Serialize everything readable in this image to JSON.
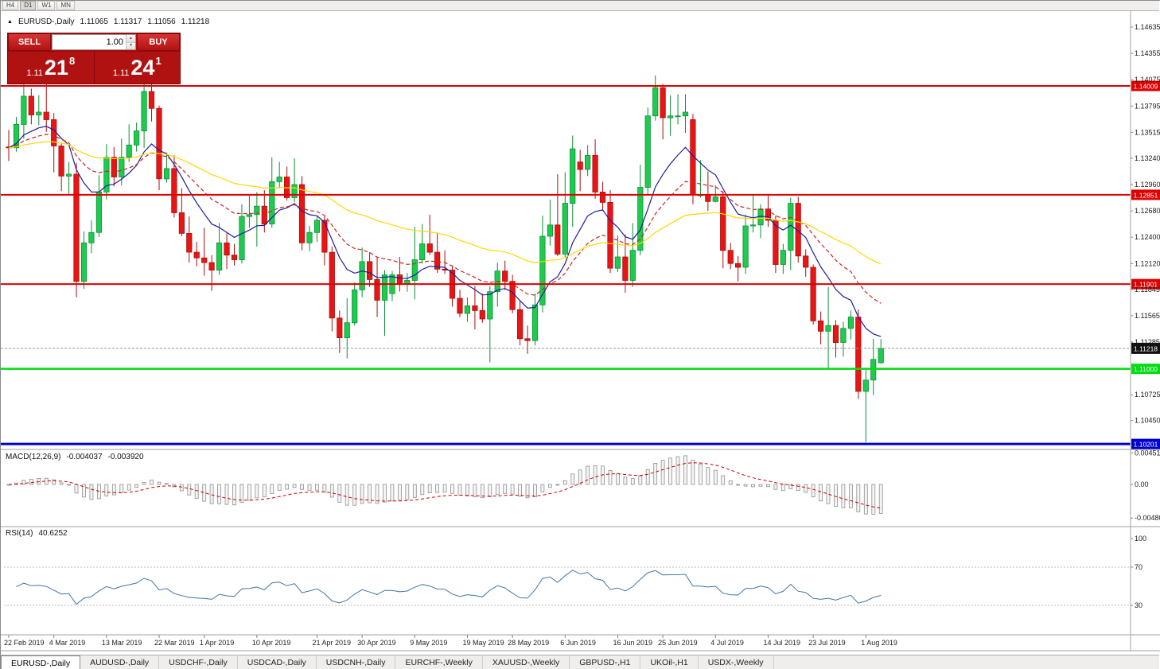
{
  "window": {
    "timeframes": [
      "H4",
      "D1",
      "W1",
      "MN"
    ],
    "active_timeframe": "D1"
  },
  "symbol_line": {
    "marker": "▲",
    "symbol": "EURUSD-,Daily",
    "open": "1.11065",
    "high": "1.11317",
    "low": "1.11056",
    "close": "1.11218"
  },
  "trade_panel": {
    "sell_label": "SELL",
    "buy_label": "BUY",
    "volume": "1.00",
    "sell_price": {
      "prefix": "1.11",
      "big": "21",
      "sup": "8"
    },
    "buy_price": {
      "prefix": "1.11",
      "big": "24",
      "sup": "1"
    }
  },
  "price_axis": {
    "labels": [
      "1.14635",
      "1.14355",
      "1.14075",
      "1.13795",
      "1.13515",
      "1.13240",
      "1.12960",
      "1.12680",
      "1.12400",
      "1.12120",
      "1.11845",
      "1.11565",
      "1.11285",
      "1.10725",
      "1.10450"
    ]
  },
  "levels": [
    {
      "label": "1.14009",
      "price": 1.14009,
      "color": "#dd0000",
      "text": "#ffffff",
      "width": 2
    },
    {
      "label": "1.12851",
      "price": 1.12851,
      "color": "#dd0000",
      "text": "#ffffff",
      "width": 2
    },
    {
      "label": "1.11901",
      "price": 1.11901,
      "color": "#dd0000",
      "text": "#ffffff",
      "width": 2
    },
    {
      "label": "1.11000",
      "price": 1.11,
      "color": "#00dd11",
      "text": "#ffffff",
      "width": 2.5
    },
    {
      "label": "1.10201",
      "price": 1.10201,
      "color": "#0000cc",
      "text": "#ffffff",
      "width": 3
    }
  ],
  "current_price": {
    "label": "1.11218",
    "price": 1.11218,
    "box_color": "#111111",
    "text_color": "#ffffff"
  },
  "dates": [
    {
      "label": "22 Feb 2019",
      "i": 0
    },
    {
      "label": "4 Mar 2019",
      "i": 6
    },
    {
      "label": "13 Mar 2019",
      "i": 13
    },
    {
      "label": "22 Mar 2019",
      "i": 20
    },
    {
      "label": "1 Apr 2019",
      "i": 26
    },
    {
      "label": "10 Apr 2019",
      "i": 33
    },
    {
      "label": "21 Apr 2019",
      "i": 41
    },
    {
      "label": "30 Apr 2019",
      "i": 47
    },
    {
      "label": "9 May 2019",
      "i": 54
    },
    {
      "label": "19 May 2019",
      "i": 61
    },
    {
      "label": "28 May 2019",
      "i": 67
    },
    {
      "label": "6 Jun 2019",
      "i": 74
    },
    {
      "label": "16 Jun 2019",
      "i": 81
    },
    {
      "label": "25 Jun 2019",
      "i": 87
    },
    {
      "label": "4 Jul 2019",
      "i": 94
    },
    {
      "label": "14 Jul 2019",
      "i": 101
    },
    {
      "label": "23 Jul 2019",
      "i": 107
    },
    {
      "label": "1 Aug 2019",
      "i": 114
    }
  ],
  "indicators": {
    "macd": {
      "name": "MACD(12,26,9)",
      "value_main": "-0.004037",
      "value_signal": "-0.003920",
      "axis": [
        "0.004517",
        "0.00",
        "-0.00480"
      ],
      "fast": 12,
      "slow": 26,
      "signal": 9,
      "bar_fill": "#f4f4f4",
      "bar_stroke": "#8f8f8f",
      "signal_color": "#cc0000"
    },
    "rsi": {
      "name": "RSI(14)",
      "value": "40.6252",
      "axis": [
        "100",
        "70",
        "30"
      ],
      "levels": [
        70,
        30
      ],
      "period": 14,
      "line_color": "#3f76a8"
    }
  },
  "moving_averages": [
    {
      "period": 10,
      "type": "ema",
      "color": "#1c1ca0",
      "dash": ""
    },
    {
      "period": 20,
      "type": "ema",
      "color": "#cc2222",
      "dash": "5,3"
    },
    {
      "period": 50,
      "type": "ema",
      "color": "#ffd800",
      "dash": ""
    }
  ],
  "colors": {
    "up": "#1ecb4f",
    "up_border": "#0a8f33",
    "down": "#e91515",
    "down_border": "#a80d0d",
    "axis_text": "#1a1a1a",
    "separator": "#a0a0a0"
  },
  "tabs": [
    {
      "label": "EURUSD-,Daily",
      "active": true
    },
    {
      "label": "AUDUSD-,Daily",
      "active": false
    },
    {
      "label": "USDCHF-,Daily",
      "active": false
    },
    {
      "label": "USDCAD-,Daily",
      "active": false
    },
    {
      "label": "USDCNH-,Daily",
      "active": false
    },
    {
      "label": "EURCHF-,Weekly",
      "active": false
    },
    {
      "label": "XAUUSD-,Weekly",
      "active": false
    },
    {
      "label": "GBPUSD-,H1",
      "active": false
    },
    {
      "label": "UKOil-,H1",
      "active": false
    },
    {
      "label": "USDX-,Weekly",
      "active": false
    }
  ],
  "chart_data": {
    "type": "candlestick",
    "symbol": "EURUSD-,Daily",
    "note": "OHLC per daily bar, 22 Feb 2019 - current",
    "candles": [
      [
        1.1336,
        1.1354,
        1.1321,
        1.1335
      ],
      [
        1.1335,
        1.1368,
        1.1331,
        1.136
      ],
      [
        1.136,
        1.1403,
        1.1345,
        1.139
      ],
      [
        1.139,
        1.1398,
        1.136,
        1.137
      ],
      [
        1.137,
        1.1391,
        1.1359,
        1.1373
      ],
      [
        1.1373,
        1.1408,
        1.1352,
        1.1365
      ],
      [
        1.1365,
        1.1372,
        1.1309,
        1.1337
      ],
      [
        1.1337,
        1.134,
        1.1289,
        1.1305
      ],
      [
        1.1305,
        1.132,
        1.1285,
        1.1307
      ],
      [
        1.1307,
        1.1319,
        1.1176,
        1.1193
      ],
      [
        1.1193,
        1.1246,
        1.1185,
        1.1234
      ],
      [
        1.1234,
        1.1258,
        1.1223,
        1.1245
      ],
      [
        1.1245,
        1.1306,
        1.124,
        1.1288
      ],
      [
        1.1288,
        1.1339,
        1.128,
        1.1325
      ],
      [
        1.1325,
        1.1336,
        1.1294,
        1.1304
      ],
      [
        1.1304,
        1.1345,
        1.1295,
        1.1325
      ],
      [
        1.1325,
        1.136,
        1.132,
        1.1338
      ],
      [
        1.1338,
        1.1362,
        1.1331,
        1.1353
      ],
      [
        1.1353,
        1.141,
        1.1335,
        1.1395
      ],
      [
        1.1395,
        1.1406,
        1.1363,
        1.1377
      ],
      [
        1.1377,
        1.138,
        1.129,
        1.1302
      ],
      [
        1.1302,
        1.133,
        1.1298,
        1.1313
      ],
      [
        1.1313,
        1.1327,
        1.1261,
        1.1266
      ],
      [
        1.1266,
        1.1292,
        1.1241,
        1.1244
      ],
      [
        1.1244,
        1.1262,
        1.1213,
        1.1224
      ],
      [
        1.1224,
        1.1235,
        1.1209,
        1.1218
      ],
      [
        1.1218,
        1.125,
        1.1199,
        1.1213
      ],
      [
        1.1213,
        1.1221,
        1.1183,
        1.1205
      ],
      [
        1.1205,
        1.1255,
        1.12,
        1.1234
      ],
      [
        1.1234,
        1.1244,
        1.1206,
        1.1221
      ],
      [
        1.1221,
        1.1233,
        1.121,
        1.1216
      ],
      [
        1.1216,
        1.1275,
        1.1212,
        1.1262
      ],
      [
        1.1262,
        1.1285,
        1.125,
        1.1264
      ],
      [
        1.1264,
        1.1288,
        1.123,
        1.1273
      ],
      [
        1.1273,
        1.129,
        1.1245,
        1.1254
      ],
      [
        1.1254,
        1.1325,
        1.125,
        1.1299
      ],
      [
        1.1299,
        1.132,
        1.1292,
        1.1304
      ],
      [
        1.1304,
        1.1315,
        1.1279,
        1.1282
      ],
      [
        1.1282,
        1.1324,
        1.1277,
        1.1296
      ],
      [
        1.1296,
        1.1305,
        1.1226,
        1.1234
      ],
      [
        1.1234,
        1.1252,
        1.1225,
        1.1245
      ],
      [
        1.1245,
        1.1262,
        1.1235,
        1.1258
      ],
      [
        1.1258,
        1.1262,
        1.121,
        1.1224
      ],
      [
        1.1224,
        1.123,
        1.114,
        1.1154
      ],
      [
        1.1154,
        1.1162,
        1.1117,
        1.1133
      ],
      [
        1.1133,
        1.1175,
        1.1111,
        1.1149
      ],
      [
        1.1149,
        1.1192,
        1.1146,
        1.1184
      ],
      [
        1.1184,
        1.1229,
        1.1176,
        1.1214
      ],
      [
        1.1214,
        1.1224,
        1.1187,
        1.1195
      ],
      [
        1.1195,
        1.1219,
        1.1155,
        1.1173
      ],
      [
        1.1173,
        1.1205,
        1.1135,
        1.12
      ],
      [
        1.118,
        1.1204,
        1.1172,
        1.12
      ],
      [
        1.12,
        1.1219,
        1.1182,
        1.119
      ],
      [
        1.119,
        1.1202,
        1.1182,
        1.1194
      ],
      [
        1.1194,
        1.1251,
        1.1174,
        1.1216
      ],
      [
        1.1216,
        1.1254,
        1.1212,
        1.1233
      ],
      [
        1.1233,
        1.1264,
        1.1221,
        1.1224
      ],
      [
        1.1224,
        1.1245,
        1.1202,
        1.1206
      ],
      [
        1.1206,
        1.1226,
        1.1201,
        1.1205
      ],
      [
        1.1205,
        1.1209,
        1.1166,
        1.1175
      ],
      [
        1.1175,
        1.1184,
        1.1155,
        1.1159
      ],
      [
        1.1159,
        1.1176,
        1.115,
        1.1167
      ],
      [
        1.1167,
        1.1188,
        1.1142,
        1.1162
      ],
      [
        1.1162,
        1.118,
        1.1149,
        1.1153
      ],
      [
        1.1153,
        1.1188,
        1.1107,
        1.1182
      ],
      [
        1.1182,
        1.1213,
        1.1166,
        1.1204
      ],
      [
        1.1204,
        1.1215,
        1.1184,
        1.1193
      ],
      [
        1.1193,
        1.12,
        1.1159,
        1.1163
      ],
      [
        1.1163,
        1.1172,
        1.1125,
        1.1132
      ],
      [
        1.1132,
        1.1146,
        1.1116,
        1.113
      ],
      [
        1.113,
        1.118,
        1.1125,
        1.1168
      ],
      [
        1.1168,
        1.1263,
        1.116,
        1.1241
      ],
      [
        1.1241,
        1.128,
        1.1231,
        1.1253
      ],
      [
        1.1253,
        1.1307,
        1.122,
        1.1222
      ],
      [
        1.1222,
        1.1309,
        1.1219,
        1.1276
      ],
      [
        1.1276,
        1.1348,
        1.1251,
        1.1334
      ],
      [
        1.132,
        1.1333,
        1.1289,
        1.1312
      ],
      [
        1.1312,
        1.1338,
        1.1305,
        1.1327
      ],
      [
        1.1327,
        1.1344,
        1.1281,
        1.1288
      ],
      [
        1.1288,
        1.1299,
        1.1268,
        1.1277
      ],
      [
        1.1277,
        1.129,
        1.1202,
        1.1207
      ],
      [
        1.1207,
        1.1242,
        1.1203,
        1.1219
      ],
      [
        1.1219,
        1.1243,
        1.1181,
        1.1194
      ],
      [
        1.1194,
        1.1255,
        1.1187,
        1.1226
      ],
      [
        1.1226,
        1.1317,
        1.1221,
        1.1293
      ],
      [
        1.1293,
        1.1378,
        1.1285,
        1.1369
      ],
      [
        1.1369,
        1.1412,
        1.1364,
        1.1399
      ],
      [
        1.1399,
        1.1403,
        1.1344,
        1.1367
      ],
      [
        1.1367,
        1.1391,
        1.1348,
        1.1369
      ],
      [
        1.1369,
        1.1392,
        1.136,
        1.1369
      ],
      [
        1.1369,
        1.1392,
        1.1351,
        1.1373
      ],
      [
        1.1365,
        1.1371,
        1.1275,
        1.1285
      ],
      [
        1.1285,
        1.1322,
        1.1282,
        1.1285
      ],
      [
        1.1285,
        1.131,
        1.1268,
        1.1278
      ],
      [
        1.1278,
        1.1295,
        1.1277,
        1.1283
      ],
      [
        1.1283,
        1.1289,
        1.1207,
        1.1226
      ],
      [
        1.1226,
        1.1234,
        1.1206,
        1.1212
      ],
      [
        1.1212,
        1.122,
        1.1193,
        1.1208
      ],
      [
        1.1208,
        1.1264,
        1.1201,
        1.1252
      ],
      [
        1.1252,
        1.1286,
        1.1245,
        1.1253
      ],
      [
        1.1253,
        1.1275,
        1.1239,
        1.127
      ],
      [
        1.127,
        1.1285,
        1.1251,
        1.1258
      ],
      [
        1.1258,
        1.1263,
        1.1202,
        1.1211
      ],
      [
        1.1211,
        1.1233,
        1.1201,
        1.1226
      ],
      [
        1.1226,
        1.1282,
        1.1205,
        1.1276
      ],
      [
        1.1276,
        1.1283,
        1.1213,
        1.122
      ],
      [
        1.122,
        1.1227,
        1.1198,
        1.1208
      ],
      [
        1.1208,
        1.1211,
        1.1147,
        1.1151
      ],
      [
        1.1151,
        1.1161,
        1.1126,
        1.114
      ],
      [
        1.114,
        1.1187,
        1.1101,
        1.1146
      ],
      [
        1.1146,
        1.1152,
        1.1112,
        1.1128
      ],
      [
        1.1128,
        1.115,
        1.1113,
        1.1143
      ],
      [
        1.1143,
        1.1162,
        1.1131,
        1.1155
      ],
      [
        1.1155,
        1.1163,
        1.1068,
        1.1076
      ],
      [
        1.1076,
        1.1099,
        1.1022,
        1.1088
      ],
      [
        1.1088,
        1.1132,
        1.1072,
        1.111
      ],
      [
        1.11065,
        1.11317,
        1.11056,
        1.11218
      ]
    ]
  }
}
